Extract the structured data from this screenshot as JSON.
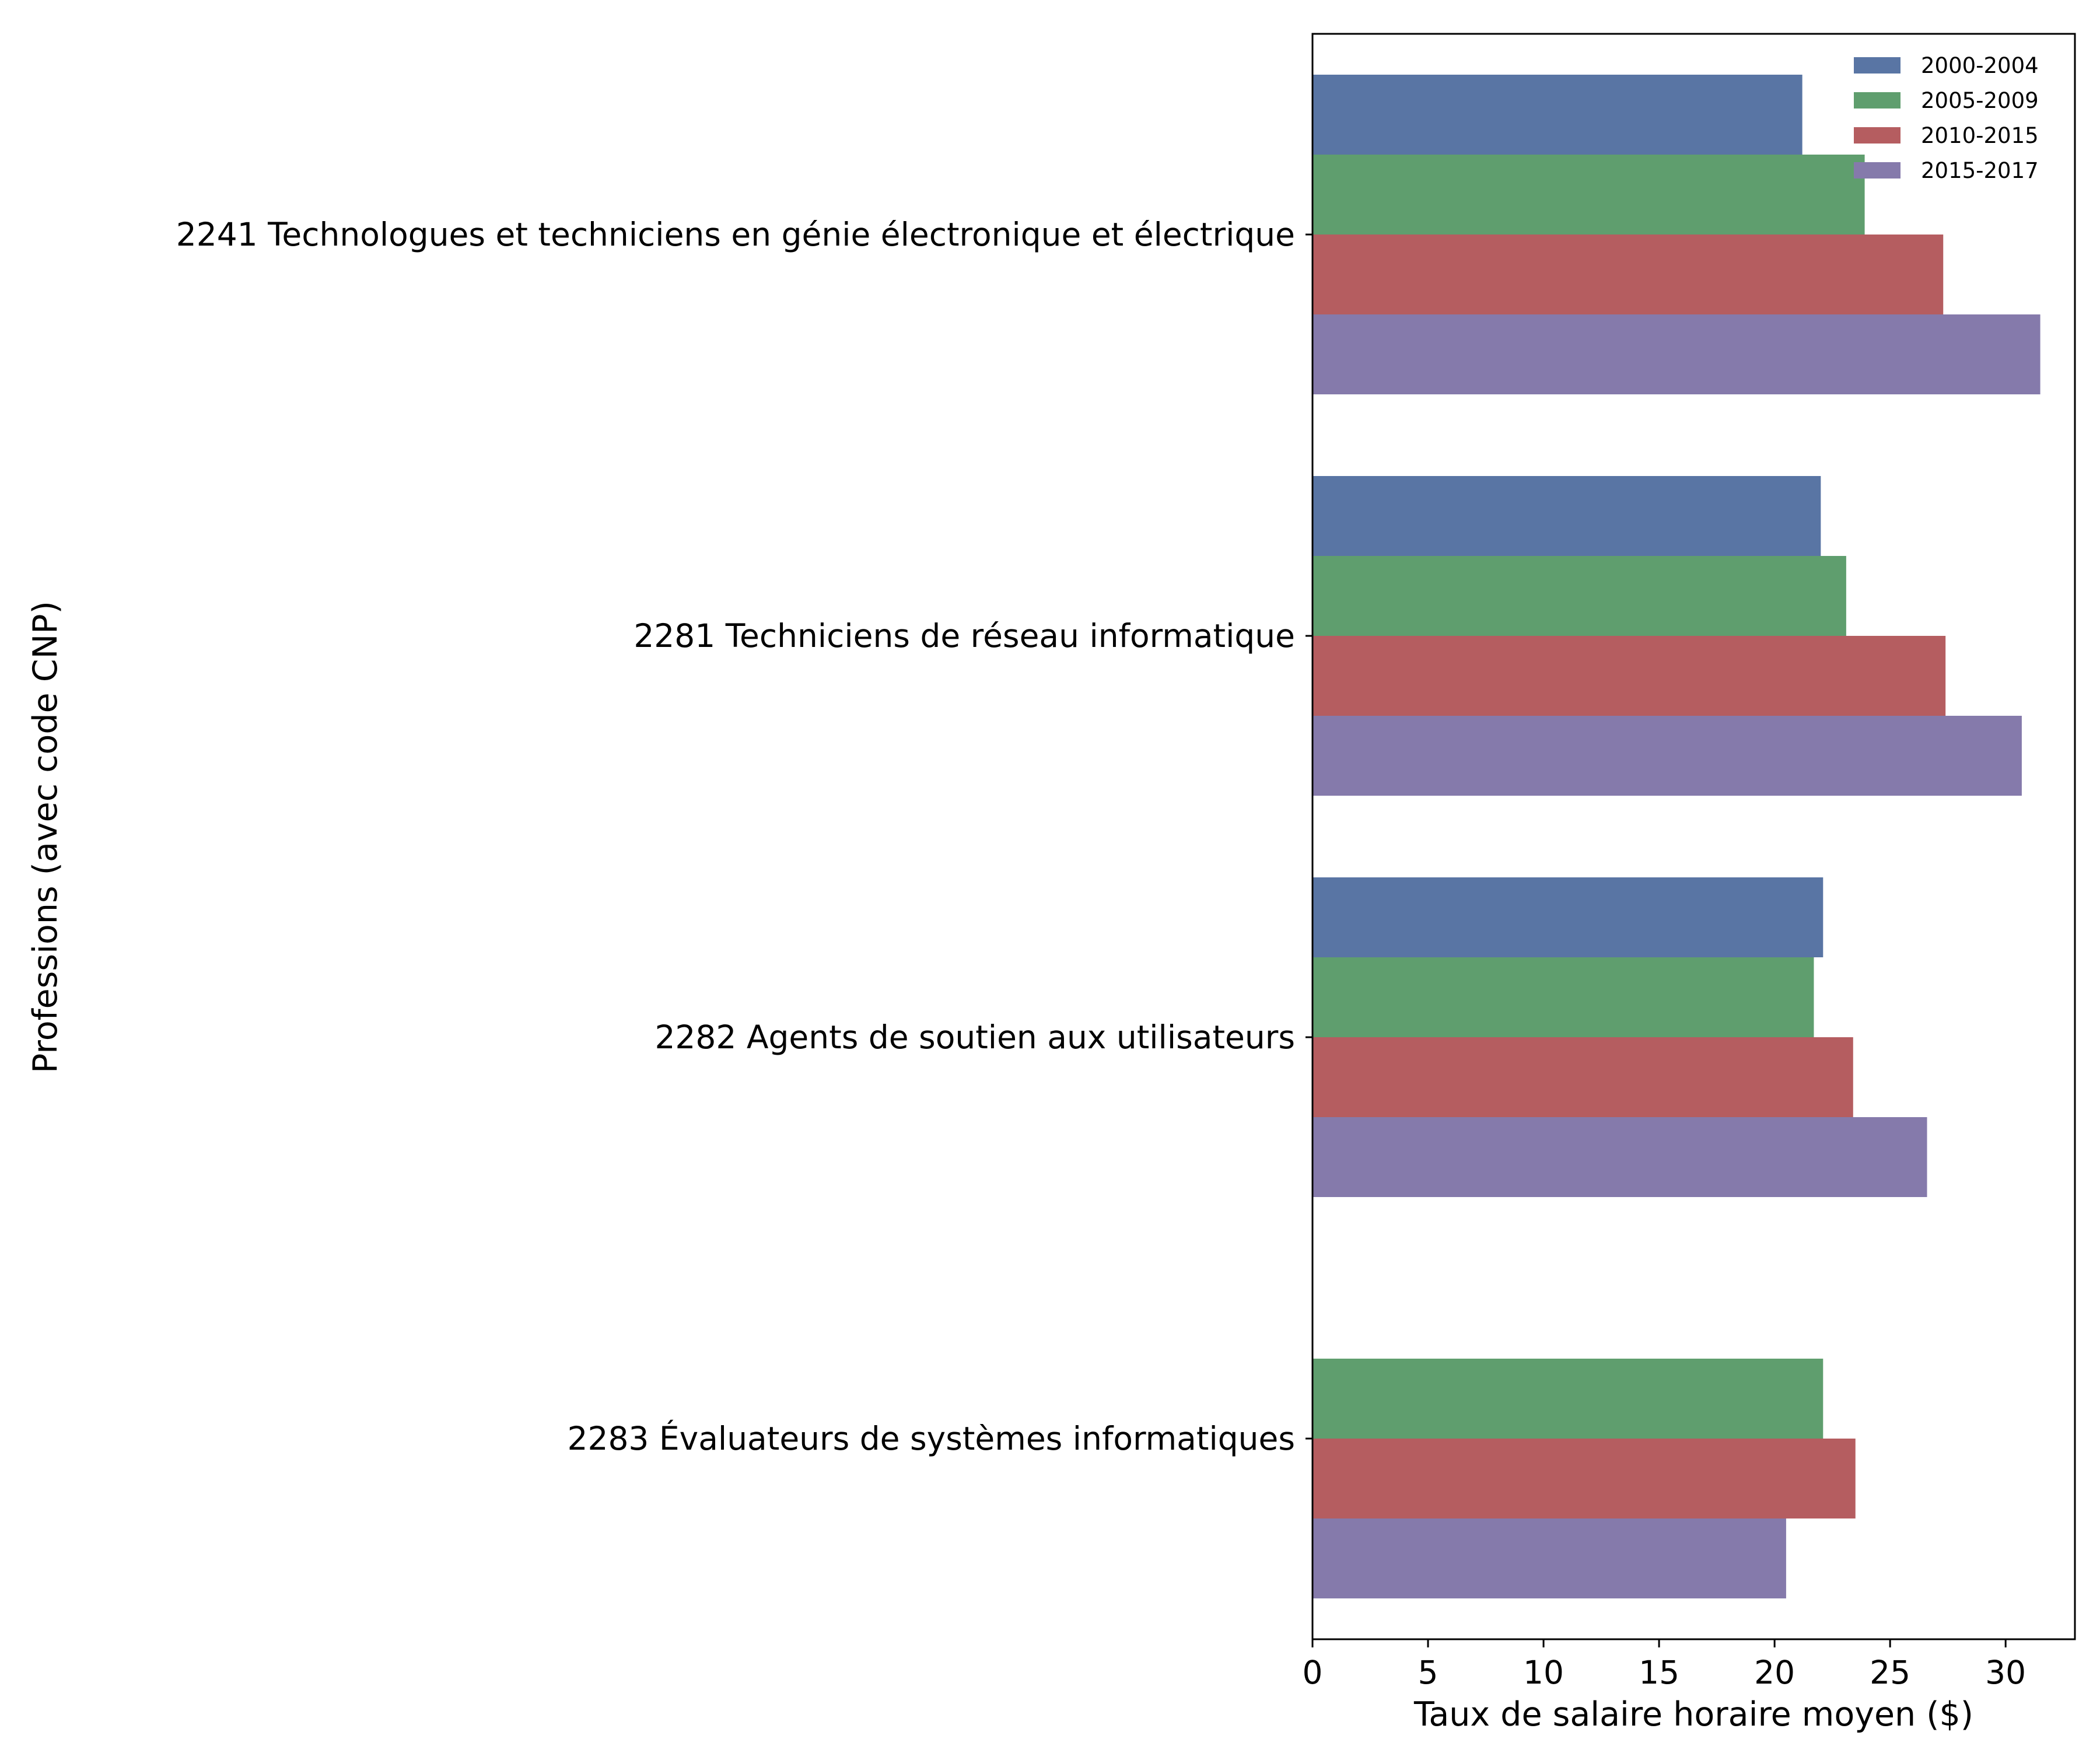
{
  "chart_data": {
    "type": "bar",
    "orientation": "horizontal",
    "title": "",
    "xlabel": "Taux de salaire horaire moyen ($)",
    "ylabel": "Professions (avec code CNP)",
    "xlim": [
      0,
      33
    ],
    "xticks": [
      0,
      5,
      10,
      15,
      20,
      25,
      30
    ],
    "grid": false,
    "legend_position": "top-right",
    "categories": [
      "2241 Technologues et techniciens en génie électronique et électrique",
      "2281 Techniciens de réseau informatique",
      "2282 Agents de soutien aux utilisateurs",
      "2283 Évaluateurs de systèmes informatiques"
    ],
    "series": [
      {
        "name": "2000-2004",
        "color": "#5975a4",
        "values": [
          21.2,
          22.0,
          22.1,
          null
        ]
      },
      {
        "name": "2005-2009",
        "color": "#5f9e6e",
        "values": [
          23.9,
          23.1,
          21.7,
          22.1
        ]
      },
      {
        "name": "2010-2015",
        "color": "#b55d60",
        "values": [
          27.3,
          27.4,
          23.4,
          23.5
        ]
      },
      {
        "name": "2015-2017",
        "color": "#857aab",
        "values": [
          31.5,
          30.7,
          26.6,
          20.5
        ]
      }
    ]
  }
}
